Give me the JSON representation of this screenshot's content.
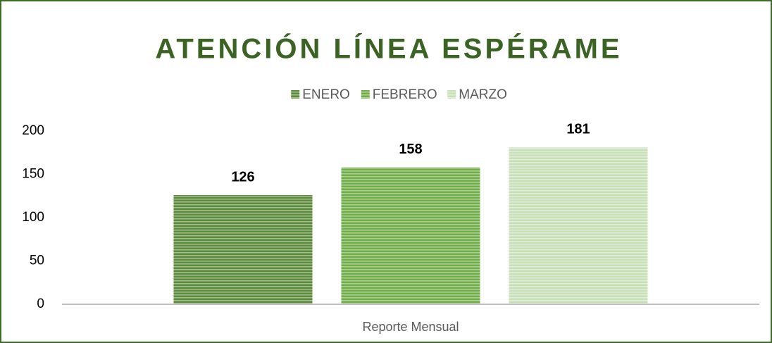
{
  "chart_data": {
    "type": "bar",
    "title": "ATENCIÓN LÍNEA ESPÉRAME",
    "categories": [
      "Reporte Mensual"
    ],
    "series": [
      {
        "name": "ENERO",
        "color": "#5b8a3a",
        "values": [
          126
        ]
      },
      {
        "name": "FEBRERO",
        "color": "#70ad47",
        "values": [
          158
        ]
      },
      {
        "name": "MARZO",
        "color": "#c8e0b8",
        "values": [
          181
        ]
      }
    ],
    "ylim": [
      0,
      200
    ],
    "yticks": [
      0,
      50,
      100,
      150,
      200
    ],
    "grid": false,
    "legend": "top"
  }
}
